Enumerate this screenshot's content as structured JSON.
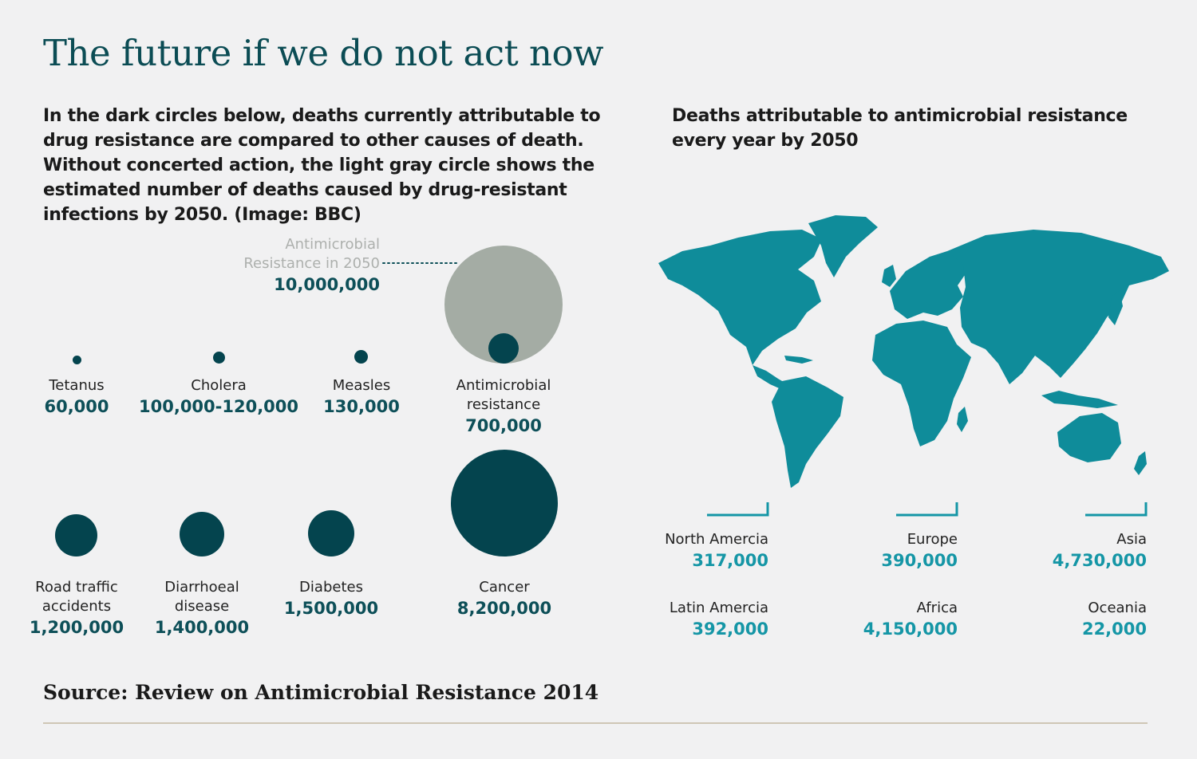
{
  "title": "The future if we do not act now",
  "intro": "In the dark circles below, deaths currently attributable to drug resistance are compared to other causes of death. Without concerted action, the light gray circle shows the estimated number of deaths caused by drug-resistant infections by 2050. (Image: BBC)",
  "map_title": "Deaths attributable to antimicrobial resistance every year by 2050",
  "amr_2050": {
    "label_line1": "Antimicrobial",
    "label_line2": "Resistance in 2050",
    "value": "10,000,000"
  },
  "causes": {
    "tetanus": {
      "name": "Tetanus",
      "value": "60,000"
    },
    "cholera": {
      "name": "Cholera",
      "value": "100,000-120,000"
    },
    "measles": {
      "name": "Measles",
      "value": "130,000"
    },
    "amr": {
      "name_line1": "Antimicrobial",
      "name_line2": "resistance",
      "value": "700,000"
    },
    "road": {
      "name_line1": "Road traffic",
      "name_line2": "accidents",
      "value": "1,200,000"
    },
    "diarrhoeal": {
      "name_line1": "Diarrhoeal",
      "name_line2": "disease",
      "value": "1,400,000"
    },
    "diabetes": {
      "name": "Diabetes",
      "value": "1,500,000"
    },
    "cancer": {
      "name": "Cancer",
      "value": "8,200,000"
    }
  },
  "regions": {
    "north_america": {
      "name": "North Amercia",
      "value": "317,000"
    },
    "europe": {
      "name": "Europe",
      "value": "390,000"
    },
    "asia": {
      "name": "Asia",
      "value": "4,730,000"
    },
    "latin_america": {
      "name": "Latin Amercia",
      "value": "392,000"
    },
    "africa": {
      "name": "Africa",
      "value": "4,150,000"
    },
    "oceania": {
      "name": "Oceania",
      "value": "22,000"
    }
  },
  "source": "Source: Review on Antimicrobial Resistance 2014",
  "colors": {
    "background": "#f1f1f2",
    "dark_circle": "#04444e",
    "light_circle": "#a4aca4",
    "map": "#0f8c9a",
    "region_value": "#1596a6",
    "title": "#0b4c54"
  },
  "chart_data": {
    "type": "bubble",
    "title": "",
    "series": [
      {
        "name": "Tetanus",
        "value": 60000
      },
      {
        "name": "Cholera",
        "value": 110000
      },
      {
        "name": "Measles",
        "value": 130000
      },
      {
        "name": "Antimicrobial resistance",
        "value": 700000
      },
      {
        "name": "Road traffic accidents",
        "value": 1200000
      },
      {
        "name": "Diarrhoeal disease",
        "value": 1400000
      },
      {
        "name": "Diabetes",
        "value": 1500000
      },
      {
        "name": "Cancer",
        "value": 8200000
      },
      {
        "name": "Antimicrobial Resistance in 2050",
        "value": 10000000
      }
    ],
    "regions_2050": [
      {
        "name": "North Amercia",
        "value": 317000
      },
      {
        "name": "Europe",
        "value": 390000
      },
      {
        "name": "Asia",
        "value": 4730000
      },
      {
        "name": "Latin Amercia",
        "value": 392000
      },
      {
        "name": "Africa",
        "value": 4150000
      },
      {
        "name": "Oceania",
        "value": 22000
      }
    ]
  }
}
